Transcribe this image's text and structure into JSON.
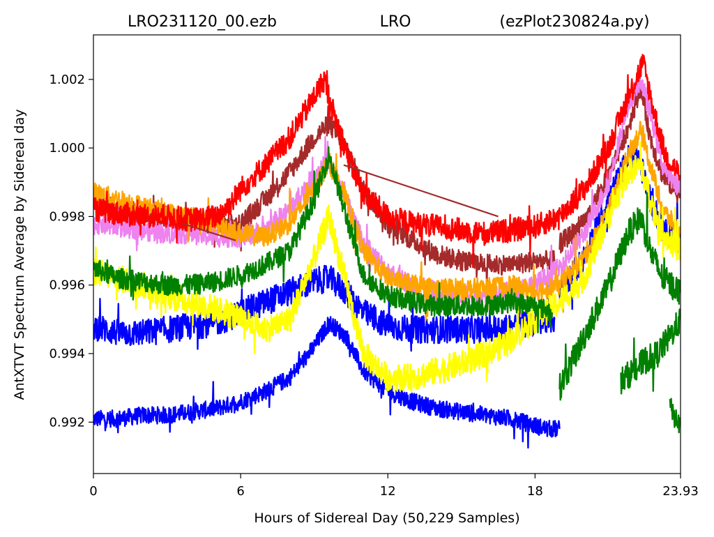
{
  "title": {
    "left": "LRO231120_00.ezb",
    "center": "LRO",
    "right": "(ezPlot230824a.py)"
  },
  "chart_data": {
    "type": "line",
    "title": "LRO231120_00.ezb          LRO          (ezPlot230824a.py)",
    "xlabel": "Hours of Sidereal Day  (50,229 Samples)",
    "ylabel": "AntXTVT Spectrum Average by Sidereal day",
    "xlim": [
      0,
      23.93
    ],
    "ylim": [
      0.9905,
      1.0033
    ],
    "x_ticks": [
      0,
      6,
      12,
      18,
      23.93
    ],
    "x_tick_labels": [
      "0",
      "6",
      "12",
      "18",
      "23.93"
    ],
    "y_ticks": [
      0.992,
      0.994,
      0.996,
      0.998,
      1.0,
      1.002
    ],
    "y_tick_labels": [
      "0.992",
      "0.994",
      "0.996",
      "0.998",
      "1.000",
      "1.002"
    ],
    "grid": false,
    "legend": "none",
    "series": [
      {
        "color": "#0000ff",
        "noise": 0.00025,
        "x": [
          0,
          1,
          2,
          3,
          4,
          5,
          6,
          7,
          8,
          9,
          9.6,
          10.3,
          11,
          12,
          13,
          14,
          15,
          16,
          17,
          18,
          18.5,
          19
        ],
        "y": [
          0.9921,
          0.9921,
          0.9922,
          0.9922,
          0.9923,
          0.9924,
          0.9926,
          0.9929,
          0.9933,
          0.9942,
          0.9949,
          0.9945,
          0.9935,
          0.9929,
          0.9926,
          0.9924,
          0.9923,
          0.9922,
          0.9921,
          0.9919,
          0.9918,
          0.9918
        ]
      },
      {
        "color": "#0000ff",
        "noise": 0.0004,
        "x": [
          0,
          1,
          2,
          3,
          4,
          5,
          6,
          7,
          8,
          9,
          9.6,
          10.3,
          11,
          12,
          13,
          14,
          15,
          16,
          17,
          18,
          18.8
        ],
        "y": [
          0.9948,
          0.9946,
          0.9946,
          0.9947,
          0.9948,
          0.9949,
          0.9952,
          0.9955,
          0.9958,
          0.9961,
          0.9962,
          0.9958,
          0.9952,
          0.9948,
          0.9947,
          0.9947,
          0.9947,
          0.9947,
          0.9948,
          0.9949,
          0.995
        ]
      },
      {
        "color": "#0000ff",
        "noise": 0.0004,
        "x": [
          19,
          20,
          21,
          21.8,
          22.2,
          22.5,
          23,
          23.93
        ],
        "y": [
          0.9958,
          0.9968,
          0.9985,
          0.9997,
          0.9998,
          0.999,
          0.9978,
          0.9972
        ]
      },
      {
        "color": "#a52a2a",
        "noise": 0.0003,
        "x": [
          0,
          1,
          2,
          3,
          4,
          5,
          6,
          7,
          8,
          9,
          9.6,
          10.3,
          11,
          12,
          13,
          14,
          15,
          16,
          17,
          18,
          18.8
        ],
        "y": [
          0.9984,
          0.9982,
          0.9981,
          0.998,
          0.9979,
          0.9977,
          0.9978,
          0.9985,
          0.9993,
          1.0003,
          1.0007,
          1.0,
          0.9988,
          0.9978,
          0.9973,
          0.9969,
          0.9967,
          0.9966,
          0.9966,
          0.9967,
          0.9967
        ]
      },
      {
        "color": "#a52a2a",
        "noise": 0.0003,
        "x": [
          19,
          20,
          21,
          21.8,
          22.3,
          22.7,
          23.2,
          23.93
        ],
        "y": [
          0.9972,
          0.9978,
          0.9992,
          1.0006,
          1.0018,
          1.0003,
          0.9992,
          0.9986
        ]
      },
      {
        "color": "#ee82ee",
        "noise": 0.0003,
        "x": [
          0,
          1,
          2,
          3,
          4,
          5,
          6,
          7,
          8,
          9,
          9.6,
          10.3,
          11,
          12,
          13,
          14,
          15,
          16,
          17,
          18,
          19,
          20,
          21,
          21.8,
          22.3,
          22.7,
          23.2,
          23.93
        ],
        "y": [
          0.9978,
          0.9977,
          0.9976,
          0.9975,
          0.9975,
          0.9974,
          0.9974,
          0.9976,
          0.9982,
          0.9992,
          0.9996,
          0.9985,
          0.9972,
          0.9964,
          0.996,
          0.9958,
          0.9957,
          0.9957,
          0.9958,
          0.996,
          0.9965,
          0.9975,
          0.999,
          1.0013,
          1.002,
          1.001,
          0.9995,
          0.9988
        ]
      },
      {
        "color": "#ffa500",
        "noise": 0.0003,
        "x": [
          0,
          1,
          2,
          3,
          4,
          5,
          6,
          7,
          8,
          9,
          9.6,
          10.3,
          11,
          12,
          13,
          14,
          15,
          16,
          17,
          18,
          19,
          20,
          21,
          21.8,
          22.3,
          22.7,
          23.2,
          23.93
        ],
        "y": [
          0.9987,
          0.9985,
          0.9983,
          0.9981,
          0.998,
          0.9978,
          0.9975,
          0.9974,
          0.9978,
          0.9988,
          0.9996,
          0.9985,
          0.997,
          0.9962,
          0.996,
          0.9959,
          0.9959,
          0.9959,
          0.996,
          0.9958,
          0.996,
          0.9968,
          0.9982,
          0.9998,
          1.0005,
          0.9995,
          0.9982,
          0.9975
        ]
      },
      {
        "color": "#ff0000",
        "noise": 0.00035,
        "x": [
          0,
          1,
          2,
          3,
          4,
          5,
          5.5,
          6,
          7,
          8,
          9,
          9.4,
          9.8,
          10.5,
          11,
          12,
          13,
          14,
          15,
          16,
          17,
          18,
          19,
          20,
          21,
          21.8,
          22.4,
          22.8,
          23.3,
          23.93
        ],
        "y": [
          0.9982,
          0.9981,
          0.998,
          0.998,
          0.9979,
          0.998,
          0.9983,
          0.9988,
          0.9995,
          1.0003,
          1.0015,
          1.002,
          1.001,
          0.9995,
          0.9987,
          0.998,
          0.9978,
          0.9977,
          0.9976,
          0.9975,
          0.9976,
          0.9977,
          0.998,
          0.9988,
          1.0,
          1.0015,
          1.0025,
          1.0012,
          0.9998,
          0.9992
        ]
      },
      {
        "color": "#ffff00",
        "noise": 0.0004,
        "x": [
          0,
          1,
          2,
          3,
          4,
          5,
          6,
          7,
          8,
          9,
          9.6,
          10.3,
          11,
          12,
          13,
          14,
          15,
          16,
          17,
          18,
          19,
          20,
          21,
          21.8,
          22.3,
          22.7,
          23.2,
          23.93
        ],
        "y": [
          0.9964,
          0.9962,
          0.996,
          0.9957,
          0.9955,
          0.9953,
          0.995,
          0.9947,
          0.995,
          0.9968,
          0.998,
          0.996,
          0.994,
          0.9933,
          0.9933,
          0.9935,
          0.9937,
          0.994,
          0.9944,
          0.995,
          0.9955,
          0.9962,
          0.998,
          0.9993,
          0.9995,
          0.9985,
          0.9975,
          0.997
        ]
      },
      {
        "color": "#008000",
        "noise": 0.0003,
        "x": [
          0,
          1,
          2,
          3,
          4,
          5,
          6,
          7,
          8,
          9,
          9.6,
          10.3,
          11,
          12,
          13,
          14,
          15,
          16,
          17,
          18,
          18.7
        ],
        "y": [
          0.9965,
          0.9962,
          0.9961,
          0.996,
          0.996,
          0.9961,
          0.9963,
          0.9966,
          0.997,
          0.9985,
          0.9998,
          0.998,
          0.9963,
          0.9957,
          0.9955,
          0.9954,
          0.9954,
          0.9954,
          0.9955,
          0.9954,
          0.9952
        ]
      },
      {
        "color": "#008000",
        "noise": 0.0004,
        "x": [
          19,
          20,
          21,
          21.8,
          22.3,
          22.7,
          23.2,
          23.93
        ],
        "y": [
          0.993,
          0.9945,
          0.996,
          0.9975,
          0.998,
          0.997,
          0.9962,
          0.9958
        ]
      },
      {
        "color": "#008000",
        "noise": 0.0004,
        "x": [
          21.5,
          22,
          22.5,
          23,
          23.5,
          23.93
        ],
        "y": [
          0.9932,
          0.9935,
          0.9938,
          0.994,
          0.9945,
          0.995
        ]
      },
      {
        "color": "#008000",
        "noise": 0.0003,
        "x": [
          23.5,
          23.7,
          23.93
        ],
        "y": [
          0.9925,
          0.9921,
          0.9919
        ]
      },
      {
        "color": "#a52a2a",
        "noise": 0,
        "x": [
          10.2,
          16.5
        ],
        "y": [
          0.9995,
          0.998
        ]
      },
      {
        "color": "#a52a2a",
        "noise": 0,
        "x": [
          3.6,
          5.8
        ],
        "y": [
          0.9978,
          0.9973
        ]
      }
    ]
  }
}
